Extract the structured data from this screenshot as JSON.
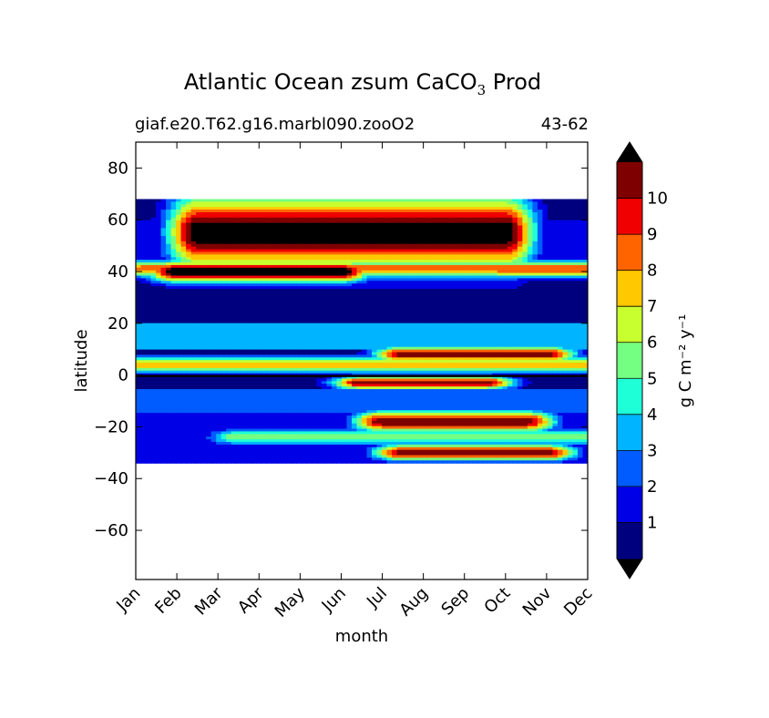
{
  "title": {
    "main": "Atlantic Ocean zsum CaCO",
    "sub": "3",
    "tail": " Prod"
  },
  "subtitle_left": "giaf.e20.T62.g16.marbl090.zooO2",
  "subtitle_right": "43-62",
  "chart_data": {
    "type": "heatmap",
    "xlabel": "month",
    "ylabel": "latitude",
    "x_ticks": [
      "Jan",
      "Feb",
      "Mar",
      "Apr",
      "May",
      "Jun",
      "Jul",
      "Aug",
      "Sep",
      "Oct",
      "Nov",
      "Dec"
    ],
    "y_ticks": [
      "80",
      "60",
      "40",
      "20",
      "0",
      "−20",
      "−40",
      "−60"
    ],
    "y_tick_values": [
      80,
      60,
      40,
      20,
      0,
      -20,
      -40,
      -60
    ],
    "ylim": [
      -79,
      90
    ],
    "data_lat_range": [
      -34,
      68
    ],
    "colorbar": {
      "label": "g C m⁻² y⁻¹",
      "tick_labels": [
        "1",
        "2",
        "3",
        "4",
        "5",
        "6",
        "7",
        "8",
        "9",
        "10"
      ],
      "colors": [
        "#00007f",
        "#0000e6",
        "#005cff",
        "#00b4ff",
        "#1effd8",
        "#74ff82",
        "#c8ff2e",
        "#ffc800",
        "#ff6400",
        "#f00000",
        "#7f0000"
      ],
      "over_color": "#000000",
      "under_color": "#000000",
      "extend": "both"
    },
    "features": [
      {
        "lat": 41,
        "lat_half_width": 3,
        "month_from": 0.2,
        "month_to": 11.5,
        "peak": 9
      },
      {
        "lat": 55,
        "lat_half_width": 14,
        "month_from": 1.5,
        "month_to": 9.0,
        "peak": 12
      },
      {
        "lat": 40,
        "lat_half_width": 4,
        "month_from": 1.0,
        "month_to": 5.0,
        "peak": 12
      },
      {
        "lat": 40,
        "lat_half_width": 2,
        "month_from": 9.0,
        "month_to": 11.2,
        "peak": 9
      },
      {
        "lat": 8,
        "lat_half_width": 3,
        "month_from": 6.5,
        "month_to": 10.0,
        "peak": 11
      },
      {
        "lat": 4,
        "lat_half_width": 3,
        "month_from": 0.0,
        "month_to": 11.0,
        "peak": 8
      },
      {
        "lat": -3,
        "lat_half_width": 2.5,
        "month_from": 5.5,
        "month_to": 8.5,
        "peak": 11
      },
      {
        "lat": -18,
        "lat_half_width": 4,
        "month_from": 6.0,
        "month_to": 9.5,
        "peak": 11
      },
      {
        "lat": -30,
        "lat_half_width": 3,
        "month_from": 6.5,
        "month_to": 10.0,
        "peak": 11
      },
      {
        "lat": -24,
        "lat_half_width": 3,
        "month_from": 2.5,
        "month_to": 11.0,
        "peak": 6
      }
    ]
  }
}
